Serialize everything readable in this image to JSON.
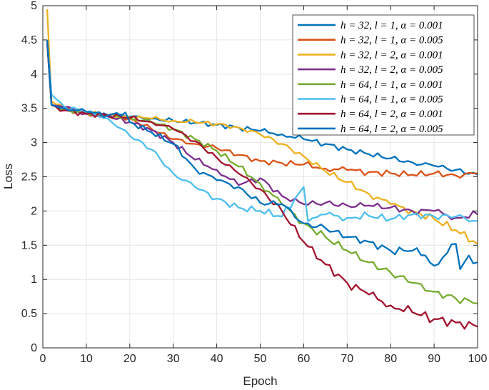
{
  "chart_data": {
    "type": "line",
    "title": "",
    "xlabel": "Epoch",
    "ylabel": "Loss",
    "xlim": [
      0,
      100
    ],
    "ylim": [
      0,
      5
    ],
    "xticks": [
      0,
      10,
      20,
      30,
      40,
      50,
      60,
      70,
      80,
      90,
      100
    ],
    "yticks": [
      0,
      0.5,
      1,
      1.5,
      2,
      2.5,
      3,
      3.5,
      4,
      4.5,
      5
    ],
    "xtick_labels": [
      "0",
      "10",
      "20",
      "30",
      "40",
      "50",
      "60",
      "70",
      "80",
      "90",
      "100"
    ],
    "ytick_labels": [
      "0",
      "0.5",
      "1",
      "1.5",
      "2",
      "2.5",
      "3",
      "3.5",
      "4",
      "4.5",
      "5"
    ],
    "grid": true,
    "legend_position": "top-right",
    "series": [
      {
        "name": "h = 32, l = 1, α = 0.001",
        "color": "#0072BD",
        "points": [
          [
            1,
            4.5
          ],
          [
            2,
            3.55
          ],
          [
            5,
            3.48
          ],
          [
            10,
            3.44
          ],
          [
            15,
            3.4
          ],
          [
            20,
            3.38
          ],
          [
            25,
            3.35
          ],
          [
            30,
            3.32
          ],
          [
            35,
            3.29
          ],
          [
            40,
            3.26
          ],
          [
            45,
            3.22
          ],
          [
            50,
            3.17
          ],
          [
            55,
            3.12
          ],
          [
            60,
            3.05
          ],
          [
            65,
            2.98
          ],
          [
            70,
            2.9
          ],
          [
            75,
            2.83
          ],
          [
            80,
            2.77
          ],
          [
            85,
            2.71
          ],
          [
            90,
            2.66
          ],
          [
            95,
            2.6
          ],
          [
            100,
            2.53
          ]
        ]
      },
      {
        "name": "h = 32, l = 1, α = 0.005",
        "color": "#D95319",
        "points": [
          [
            1,
            4.45
          ],
          [
            2,
            3.55
          ],
          [
            5,
            3.48
          ],
          [
            10,
            3.43
          ],
          [
            15,
            3.4
          ],
          [
            20,
            3.35
          ],
          [
            25,
            3.2
          ],
          [
            30,
            3.05
          ],
          [
            35,
            2.98
          ],
          [
            40,
            2.92
          ],
          [
            45,
            2.82
          ],
          [
            50,
            2.73
          ],
          [
            55,
            2.7
          ],
          [
            60,
            2.68
          ],
          [
            65,
            2.62
          ],
          [
            70,
            2.6
          ],
          [
            75,
            2.57
          ],
          [
            80,
            2.55
          ],
          [
            85,
            2.53
          ],
          [
            90,
            2.55
          ],
          [
            95,
            2.52
          ],
          [
            100,
            2.55
          ]
        ]
      },
      {
        "name": "h = 32, l = 2, α = 0.001",
        "color": "#EDB120",
        "points": [
          [
            1,
            4.95
          ],
          [
            2,
            3.6
          ],
          [
            5,
            3.48
          ],
          [
            10,
            3.43
          ],
          [
            15,
            3.4
          ],
          [
            20,
            3.37
          ],
          [
            25,
            3.35
          ],
          [
            30,
            3.32
          ],
          [
            35,
            3.3
          ],
          [
            40,
            3.27
          ],
          [
            45,
            3.22
          ],
          [
            50,
            3.12
          ],
          [
            55,
            2.98
          ],
          [
            60,
            2.8
          ],
          [
            65,
            2.58
          ],
          [
            70,
            2.42
          ],
          [
            75,
            2.25
          ],
          [
            80,
            2.1
          ],
          [
            85,
            2.0
          ],
          [
            90,
            1.88
          ],
          [
            95,
            1.72
          ],
          [
            100,
            1.52
          ]
        ]
      },
      {
        "name": "h = 32, l = 2, α = 0.005",
        "color": "#7E2F8E",
        "points": [
          [
            1,
            4.45
          ],
          [
            2,
            3.55
          ],
          [
            5,
            3.52
          ],
          [
            10,
            3.42
          ],
          [
            15,
            3.38
          ],
          [
            20,
            3.3
          ],
          [
            25,
            3.18
          ],
          [
            30,
            3.0
          ],
          [
            35,
            2.75
          ],
          [
            40,
            2.6
          ],
          [
            45,
            2.38
          ],
          [
            50,
            2.48
          ],
          [
            55,
            2.22
          ],
          [
            60,
            2.1
          ],
          [
            65,
            2.12
          ],
          [
            70,
            2.08
          ],
          [
            75,
            2.08
          ],
          [
            80,
            2.05
          ],
          [
            85,
            2.0
          ],
          [
            90,
            2.0
          ],
          [
            95,
            1.9
          ],
          [
            100,
            1.95
          ]
        ]
      },
      {
        "name": "h = 64, l = 1, α = 0.001",
        "color": "#77AC30",
        "points": [
          [
            1,
            4.5
          ],
          [
            2,
            3.55
          ],
          [
            5,
            3.48
          ],
          [
            10,
            3.43
          ],
          [
            15,
            3.4
          ],
          [
            20,
            3.36
          ],
          [
            25,
            3.3
          ],
          [
            30,
            3.2
          ],
          [
            35,
            3.05
          ],
          [
            40,
            2.88
          ],
          [
            45,
            2.65
          ],
          [
            50,
            2.4
          ],
          [
            55,
            2.1
          ],
          [
            60,
            1.82
          ],
          [
            65,
            1.62
          ],
          [
            70,
            1.42
          ],
          [
            75,
            1.25
          ],
          [
            80,
            1.1
          ],
          [
            85,
            0.95
          ],
          [
            90,
            0.82
          ],
          [
            95,
            0.72
          ],
          [
            100,
            0.65
          ]
        ]
      },
      {
        "name": "h = 64, l = 1, α = 0.005",
        "color": "#4DBEEE",
        "points": [
          [
            1,
            4.5
          ],
          [
            2,
            3.7
          ],
          [
            5,
            3.52
          ],
          [
            10,
            3.45
          ],
          [
            15,
            3.35
          ],
          [
            20,
            3.1
          ],
          [
            25,
            2.9
          ],
          [
            30,
            2.55
          ],
          [
            35,
            2.35
          ],
          [
            40,
            2.18
          ],
          [
            45,
            2.05
          ],
          [
            50,
            2.0
          ],
          [
            55,
            1.92
          ],
          [
            60,
            2.35
          ],
          [
            61,
            1.85
          ],
          [
            65,
            1.95
          ],
          [
            70,
            1.9
          ],
          [
            75,
            1.93
          ],
          [
            80,
            1.88
          ],
          [
            85,
            1.95
          ],
          [
            90,
            1.92
          ],
          [
            95,
            1.92
          ],
          [
            100,
            1.85
          ]
        ]
      },
      {
        "name": "h = 64, l = 2, α = 0.001",
        "color": "#A2142F",
        "points": [
          [
            1,
            4.5
          ],
          [
            2,
            3.55
          ],
          [
            5,
            3.47
          ],
          [
            10,
            3.42
          ],
          [
            15,
            3.4
          ],
          [
            20,
            3.36
          ],
          [
            25,
            3.3
          ],
          [
            30,
            3.2
          ],
          [
            35,
            3.02
          ],
          [
            40,
            2.78
          ],
          [
            45,
            2.55
          ],
          [
            50,
            2.32
          ],
          [
            55,
            2.0
          ],
          [
            60,
            1.55
          ],
          [
            65,
            1.22
          ],
          [
            70,
            0.95
          ],
          [
            75,
            0.78
          ],
          [
            80,
            0.62
          ],
          [
            85,
            0.52
          ],
          [
            90,
            0.42
          ],
          [
            95,
            0.37
          ],
          [
            100,
            0.31
          ]
        ]
      },
      {
        "name": "h = 64, l = 2, α = 0.005",
        "color": "#0072BD",
        "points": [
          [
            1,
            4.5
          ],
          [
            2,
            3.55
          ],
          [
            5,
            3.5
          ],
          [
            10,
            3.45
          ],
          [
            15,
            3.4
          ],
          [
            19,
            3.44
          ],
          [
            20,
            3.3
          ],
          [
            25,
            3.15
          ],
          [
            30,
            2.98
          ],
          [
            35,
            2.62
          ],
          [
            40,
            2.45
          ],
          [
            45,
            2.35
          ],
          [
            50,
            2.12
          ],
          [
            55,
            2.1
          ],
          [
            60,
            1.82
          ],
          [
            65,
            1.75
          ],
          [
            70,
            1.62
          ],
          [
            75,
            1.55
          ],
          [
            80,
            1.42
          ],
          [
            85,
            1.42
          ],
          [
            88,
            1.35
          ],
          [
            90,
            1.2
          ],
          [
            95,
            1.52
          ],
          [
            96,
            1.15
          ],
          [
            98,
            1.35
          ],
          [
            100,
            1.25
          ]
        ]
      }
    ]
  }
}
